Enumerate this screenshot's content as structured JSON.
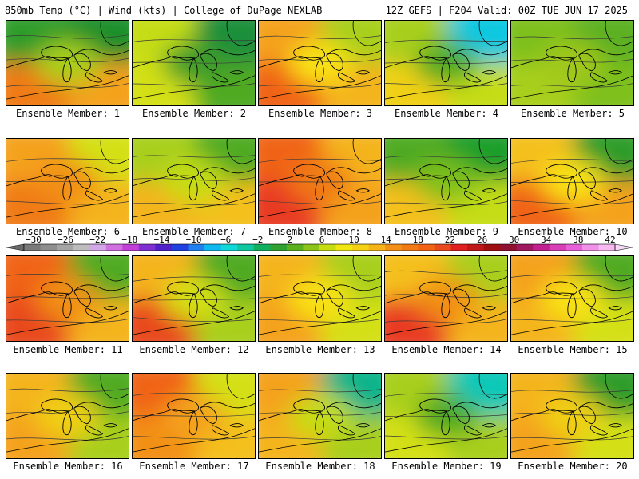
{
  "header": {
    "left": "850mb Temp (°C) | Wind (kts) | College of DuPage NEXLAB",
    "right": "12Z GEFS | F204 Valid: 00Z TUE JUN 17 2025"
  },
  "panels": [
    {
      "label": "Ensemble Member: 1",
      "tl": "#2e9c2a",
      "tr": "#1f8f2a",
      "bl": "#f07a14",
      "br": "#f4a21a",
      "center": "#a8cf1a"
    },
    {
      "label": "Ensemble Member: 2",
      "tl": "#c5dd12",
      "tr": "#1f8f3a",
      "bl": "#d4e012",
      "br": "#4faa22",
      "center": "#3c9c2a"
    },
    {
      "label": "Ensemble Member: 3",
      "tl": "#f4a21a",
      "tr": "#a8cf1a",
      "bl": "#f06414",
      "br": "#f4b41a",
      "center": "#f9e216"
    },
    {
      "label": "Ensemble Member: 4",
      "tl": "#a8cf1a",
      "tr": "#10c8e0",
      "bl": "#f0d016",
      "br": "#c5dd12",
      "center": "#4faa22"
    },
    {
      "label": "Ensemble Member: 5",
      "tl": "#7ec01c",
      "tr": "#5cb020",
      "bl": "#a8cf1a",
      "br": "#7ec01c",
      "center": "#a0c81a"
    },
    {
      "label": "Ensemble Member: 6",
      "tl": "#f4a21a",
      "tr": "#d4e012",
      "bl": "#f07a14",
      "br": "#f4b41a",
      "center": "#f29018"
    },
    {
      "label": "Ensemble Member: 7",
      "tl": "#a8cf1a",
      "tr": "#4faa22",
      "bl": "#f4b41a",
      "br": "#f4c01a",
      "center": "#c5dd12"
    },
    {
      "label": "Ensemble Member: 8",
      "tl": "#f06414",
      "tr": "#f4b41a",
      "bl": "#e83a20",
      "br": "#f4a21a",
      "center": "#f07a14"
    },
    {
      "label": "Ensemble Member: 9",
      "tl": "#4faa22",
      "tr": "#1f9f2a",
      "bl": "#f4c01a",
      "br": "#c5dd12",
      "center": "#7ec01c"
    },
    {
      "label": "Ensemble Member: 10",
      "tl": "#f4c01a",
      "tr": "#2e9c2a",
      "bl": "#f06414",
      "br": "#f4a21a",
      "center": "#f9e216"
    },
    {
      "label": "Ensemble Member: 11",
      "tl": "#f06414",
      "tr": "#4faa22",
      "bl": "#e84a1e",
      "br": "#f4b41a",
      "center": "#f29018"
    },
    {
      "label": "Ensemble Member: 12",
      "tl": "#f4b41a",
      "tr": "#4faa22",
      "bl": "#e84a1e",
      "br": "#a8cf1a",
      "center": "#d4e012"
    },
    {
      "label": "Ensemble Member: 13",
      "tl": "#f4b41a",
      "tr": "#a8cf1a",
      "bl": "#f4a21a",
      "br": "#d4e012",
      "center": "#f9e216"
    },
    {
      "label": "Ensemble Member: 14",
      "tl": "#f4c01a",
      "tr": "#a8cf1a",
      "bl": "#e83a20",
      "br": "#f4b41a",
      "center": "#f29018"
    },
    {
      "label": "Ensemble Member: 15",
      "tl": "#f4a21a",
      "tr": "#4faa22",
      "bl": "#f4b41a",
      "br": "#d4e012",
      "center": "#f9e216"
    },
    {
      "label": "Ensemble Member: 16",
      "tl": "#f4b41a",
      "tr": "#4faa22",
      "bl": "#f4a21a",
      "br": "#a8cf1a",
      "center": "#f0d016"
    },
    {
      "label": "Ensemble Member: 17",
      "tl": "#f06414",
      "tr": "#d4e012",
      "bl": "#f29018",
      "br": "#f4c01a",
      "center": "#f4a21a"
    },
    {
      "label": "Ensemble Member: 18",
      "tl": "#f4a21a",
      "tr": "#10b48a",
      "bl": "#f4b41a",
      "br": "#a8cf1a",
      "center": "#c5dd12"
    },
    {
      "label": "Ensemble Member: 19",
      "tl": "#a8cf1a",
      "tr": "#10c8b8",
      "bl": "#d4e012",
      "br": "#a8cf1a",
      "center": "#4faa22"
    },
    {
      "label": "Ensemble Member: 20",
      "tl": "#f4b41a",
      "tr": "#2e9c2a",
      "bl": "#f4a21a",
      "br": "#d4e012",
      "center": "#f0d016"
    }
  ],
  "colorbar": {
    "ticks": [
      "-30",
      "-26",
      "-22",
      "-18",
      "-14",
      "-10",
      "-6",
      "-2",
      "2",
      "6",
      "10",
      "14",
      "18",
      "22",
      "26",
      "30",
      "34",
      "38",
      "42"
    ],
    "colors": [
      "#7a7a7a",
      "#8f8f8f",
      "#a5a5a5",
      "#bdbdbd",
      "#d2a8e6",
      "#d070e0",
      "#c040d8",
      "#8030d0",
      "#5020c8",
      "#2040e0",
      "#2080f0",
      "#10b8f0",
      "#10d8d8",
      "#10c8a0",
      "#10b060",
      "#30a030",
      "#5cb020",
      "#8cc41c",
      "#c5dd12",
      "#f0e614",
      "#f4d016",
      "#f4b41a",
      "#f29018",
      "#f07a14",
      "#f06414",
      "#e84a1e",
      "#e02020",
      "#c01818",
      "#a01010",
      "#901030",
      "#a01860",
      "#c02090",
      "#d840b8",
      "#e860d8",
      "#f090e8",
      "#f8b8f0"
    ]
  }
}
